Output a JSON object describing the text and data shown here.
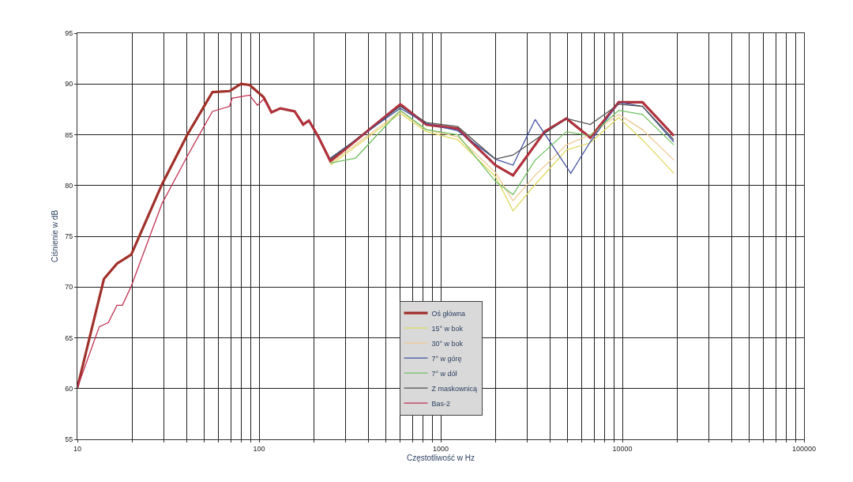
{
  "chart_data": {
    "type": "line",
    "xlabel": "Częstotliwość w Hz",
    "ylabel": "Ciśnienie w dB",
    "log": "x",
    "grid": true,
    "legend": "bottom",
    "marker": "none",
    "line_style": "solid",
    "xlim": [
      10,
      100000
    ],
    "ylim": [
      55,
      95
    ],
    "xticks": [
      10,
      {
        "value": 20,
        "label": null
      },
      {
        "value": 30,
        "label": null
      },
      {
        "value": 40,
        "label": null
      },
      {
        "value": 50,
        "label": null
      },
      {
        "value": 60,
        "label": null
      },
      {
        "value": 70,
        "label": null
      },
      {
        "value": 80,
        "label": null
      },
      {
        "value": 90,
        "label": null
      },
      100,
      {
        "value": 200,
        "label": null
      },
      {
        "value": 300,
        "label": null
      },
      {
        "value": 400,
        "label": null
      },
      {
        "value": 500,
        "label": null
      },
      {
        "value": 600,
        "label": null
      },
      {
        "value": 700,
        "label": null
      },
      {
        "value": 800,
        "label": null
      },
      {
        "value": 900,
        "label": null
      },
      1000,
      {
        "value": 2000,
        "label": null
      },
      {
        "value": 3000,
        "label": null
      },
      {
        "value": 4000,
        "label": null
      },
      {
        "value": 5000,
        "label": null
      },
      {
        "value": 6000,
        "label": null
      },
      {
        "value": 7000,
        "label": null
      },
      {
        "value": 8000,
        "label": null
      },
      {
        "value": 9000,
        "label": null
      },
      10000,
      {
        "value": 20000,
        "label": null
      },
      {
        "value": 30000,
        "label": null
      },
      {
        "value": 40000,
        "label": null
      },
      {
        "value": 50000,
        "label": null
      },
      {
        "value": 60000,
        "label": null
      },
      {
        "value": 70000,
        "label": null
      },
      {
        "value": 80000,
        "label": null
      },
      {
        "value": 90000,
        "label": null
      },
      100000
    ],
    "yticks": [
      55,
      60,
      65,
      70,
      75,
      80,
      85,
      90,
      95
    ],
    "series": [
      {
        "name": "Oś główna",
        "color": "#a0302a",
        "x": [
          10,
          14,
          16.5,
          19.8,
          29.2,
          40.3,
          55.4,
          68.9,
          79.4,
          88.7,
          106,
          117,
          131,
          157,
          175,
          188,
          212,
          247,
          599,
          834,
          1240,
          2000,
          2500,
          3310,
          3730,
          4920,
          6660,
          9540,
          12900,
          19200
        ],
        "values": [
          60.1,
          70.8,
          72.3,
          73.2,
          80.1,
          85.0,
          89.2,
          89.3,
          90.0,
          89.9,
          88.7,
          87.2,
          87.6,
          87.3,
          86.0,
          86.4,
          84.8,
          82.4,
          88.0,
          86.0,
          85.6,
          82.0,
          81.0,
          84.0,
          85.3,
          86.6,
          84.7,
          88.2,
          88.2,
          84.9
        ]
      },
      {
        "name": "15° w bok",
        "color": "#e0d860",
        "x": [
          247,
          599,
          834,
          1240,
          2000,
          2500,
          3310,
          4920,
          6660,
          9540,
          12900,
          19200
        ],
        "values": [
          82.0,
          87.1,
          85.3,
          84.5,
          80.9,
          77.5,
          80.1,
          83.5,
          84.2,
          86.7,
          84.5,
          81.2
        ]
      },
      {
        "name": "30° w bok",
        "color": "#f0c890",
        "x": [
          247,
          599,
          834,
          1240,
          2000,
          2500,
          3310,
          4920,
          6660,
          9540,
          12900,
          19200
        ],
        "values": [
          82.2,
          87.3,
          85.5,
          84.8,
          81.3,
          78.5,
          81.0,
          84.0,
          85.0,
          87.0,
          85.5,
          82.5
        ]
      },
      {
        "name": "7° w górę",
        "color": "#4050a0",
        "x": [
          247,
          599,
          834,
          1240,
          2000,
          2500,
          3310,
          3730,
          5200,
          6660,
          9540,
          12900,
          19200
        ],
        "values": [
          82.7,
          87.6,
          86.1,
          85.4,
          82.6,
          82.0,
          86.5,
          85.1,
          81.2,
          84.3,
          88.2,
          87.8,
          84.3
        ]
      },
      {
        "name": "7° w dół",
        "color": "#70c060",
        "x": [
          247,
          340,
          599,
          834,
          1240,
          2000,
          2500,
          3310,
          4920,
          6660,
          9540,
          12900,
          19200
        ],
        "values": [
          82.2,
          82.7,
          87.4,
          85.5,
          85.0,
          80.4,
          79.1,
          82.5,
          85.3,
          84.9,
          87.4,
          87.0,
          84.0
        ]
      },
      {
        "name": "Z maskownicą",
        "color": "#505050",
        "x": [
          247,
          599,
          834,
          1240,
          2000,
          2500,
          3310,
          4920,
          6660,
          9540,
          12900,
          19200
        ],
        "values": [
          82.6,
          87.8,
          86.2,
          85.8,
          82.6,
          83.0,
          84.5,
          86.6,
          86.0,
          88.0,
          87.8,
          84.5
        ]
      },
      {
        "name": "Bas-2",
        "color": "#c03050",
        "x": [
          10,
          13.2,
          14.8,
          16.5,
          17.7,
          19.8,
          29.2,
          40.3,
          55.4,
          68.9,
          71.0,
          88.7,
          98,
          106,
          117,
          131,
          157,
          175,
          188,
          212,
          247,
          599,
          834,
          1240,
          2000,
          2500,
          3310,
          3730,
          4920,
          6660,
          9540,
          12900,
          19200
        ],
        "values": [
          60.1,
          66.1,
          66.5,
          68.2,
          68.2,
          70.1,
          78.2,
          82.9,
          87.3,
          87.8,
          88.6,
          88.9,
          87.9,
          88.5,
          87.2,
          87.6,
          87.3,
          86.0,
          86.4,
          84.8,
          82.4,
          88.0,
          86.0,
          85.6,
          82.0,
          81.0,
          84.0,
          85.3,
          86.6,
          84.7,
          88.2,
          88.2,
          84.9
        ]
      }
    ]
  }
}
